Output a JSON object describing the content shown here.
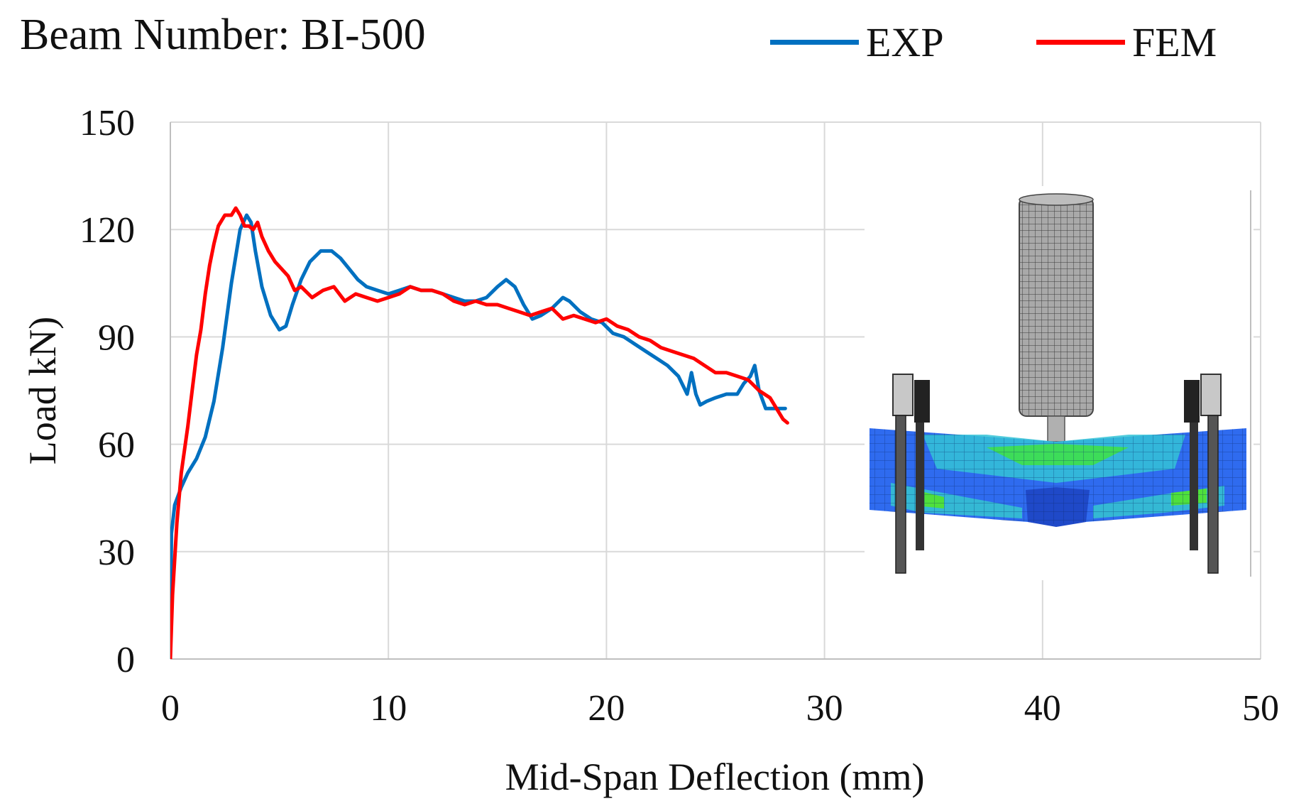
{
  "chart_data": {
    "type": "line",
    "title": "Beam Number: BI-500",
    "xlabel": "Mid-Span Deflection (mm)",
    "ylabel": "Load kN)",
    "xlim": [
      0,
      50
    ],
    "ylim": [
      0,
      150
    ],
    "xticks": [
      0,
      10,
      20,
      30,
      40,
      50
    ],
    "yticks": [
      0,
      30,
      60,
      90,
      120,
      150
    ],
    "grid": true,
    "legend_position": "top-right",
    "series": [
      {
        "name": "EXP",
        "color": "#0070C0",
        "x": [
          0,
          0.05,
          0.2,
          0.5,
          0.8,
          1.2,
          1.6,
          2.0,
          2.4,
          2.8,
          3.2,
          3.5,
          3.7,
          3.9,
          4.2,
          4.6,
          5.0,
          5.3,
          5.6,
          6.0,
          6.4,
          6.9,
          7.4,
          7.8,
          8.2,
          8.6,
          9.0,
          9.5,
          10.0,
          10.5,
          11.0,
          11.5,
          12.0,
          12.5,
          13.0,
          13.5,
          14.0,
          14.5,
          15.0,
          15.4,
          15.8,
          16.2,
          16.6,
          17.0,
          17.5,
          18.0,
          18.3,
          18.8,
          19.3,
          19.8,
          20.3,
          20.8,
          21.3,
          21.8,
          22.3,
          22.8,
          23.3,
          23.7,
          23.9,
          24.1,
          24.3,
          24.6,
          25.0,
          25.5,
          26.0,
          26.3,
          26.6,
          26.8,
          27.0,
          27.3,
          27.8,
          28.2
        ],
        "y": [
          0,
          35,
          43,
          48,
          52,
          56,
          62,
          72,
          87,
          105,
          120,
          124,
          122,
          114,
          104,
          96,
          92,
          93,
          99,
          106,
          111,
          114,
          114,
          112,
          109,
          106,
          104,
          103,
          102,
          103,
          104,
          103,
          103,
          102,
          101,
          100,
          100,
          101,
          104,
          106,
          104,
          99,
          95,
          96,
          98,
          101,
          100,
          97,
          95,
          94,
          91,
          90,
          88,
          86,
          84,
          82,
          79,
          74,
          80,
          74,
          71,
          72,
          73,
          74,
          74,
          77,
          79,
          82,
          75,
          70,
          70,
          70
        ]
      },
      {
        "name": "FEM",
        "color": "#FF0000",
        "x": [
          0,
          0.1,
          0.3,
          0.5,
          0.8,
          1.0,
          1.2,
          1.4,
          1.6,
          1.8,
          2.0,
          2.2,
          2.5,
          2.8,
          3.0,
          3.2,
          3.4,
          3.6,
          3.8,
          4.0,
          4.2,
          4.5,
          4.8,
          5.1,
          5.4,
          5.7,
          6.0,
          6.5,
          7.0,
          7.5,
          8.0,
          8.5,
          9.0,
          9.5,
          10.0,
          10.5,
          11.0,
          11.5,
          12.0,
          12.5,
          13.0,
          13.5,
          14.0,
          14.5,
          15.0,
          15.5,
          16.0,
          16.5,
          17.0,
          17.5,
          18.0,
          18.5,
          19.0,
          19.5,
          20.0,
          20.5,
          21.0,
          21.5,
          22.0,
          22.5,
          23.0,
          23.5,
          24.0,
          24.5,
          25.0,
          25.5,
          26.0,
          26.5,
          27.0,
          27.5,
          27.8,
          28.1,
          28.3
        ],
        "y": [
          0,
          18,
          38,
          52,
          65,
          75,
          85,
          92,
          102,
          110,
          116,
          121,
          124,
          124,
          126,
          124,
          121,
          121,
          120,
          122,
          118,
          114,
          111,
          109,
          107,
          103,
          104,
          101,
          103,
          104,
          100,
          102,
          101,
          100,
          101,
          102,
          104,
          103,
          103,
          102,
          100,
          99,
          100,
          99,
          99,
          98,
          97,
          96,
          97,
          98,
          95,
          96,
          95,
          94,
          95,
          93,
          92,
          90,
          89,
          87,
          86,
          85,
          84,
          82,
          80,
          80,
          79,
          78,
          75,
          73,
          70,
          67,
          66
        ]
      }
    ],
    "inset_image": "fe-beam-contour-model"
  }
}
